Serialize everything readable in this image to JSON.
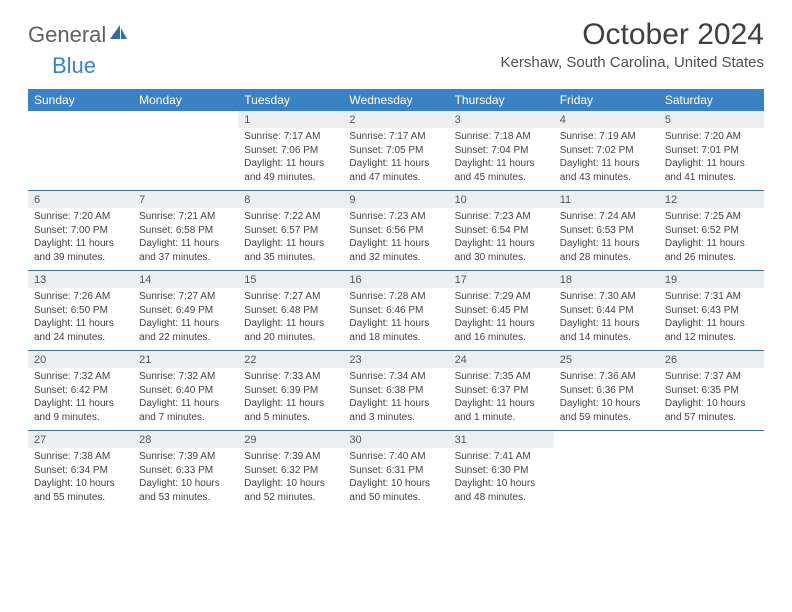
{
  "logo": {
    "part1": "General",
    "part2": "Blue"
  },
  "title": "October 2024",
  "location": "Kershaw, South Carolina, United States",
  "colors": {
    "header_bg": "#3b82c4",
    "header_text": "#ffffff",
    "daynum_bg": "#eceff1",
    "sep_color": "#3b6fa0",
    "body_text": "#444444",
    "page_bg": "#ffffff"
  },
  "day_names": [
    "Sunday",
    "Monday",
    "Tuesday",
    "Wednesday",
    "Thursday",
    "Friday",
    "Saturday"
  ],
  "weeks": [
    [
      null,
      null,
      {
        "n": "1",
        "sr": "Sunrise: 7:17 AM",
        "ss": "Sunset: 7:06 PM",
        "d1": "Daylight: 11 hours",
        "d2": "and 49 minutes."
      },
      {
        "n": "2",
        "sr": "Sunrise: 7:17 AM",
        "ss": "Sunset: 7:05 PM",
        "d1": "Daylight: 11 hours",
        "d2": "and 47 minutes."
      },
      {
        "n": "3",
        "sr": "Sunrise: 7:18 AM",
        "ss": "Sunset: 7:04 PM",
        "d1": "Daylight: 11 hours",
        "d2": "and 45 minutes."
      },
      {
        "n": "4",
        "sr": "Sunrise: 7:19 AM",
        "ss": "Sunset: 7:02 PM",
        "d1": "Daylight: 11 hours",
        "d2": "and 43 minutes."
      },
      {
        "n": "5",
        "sr": "Sunrise: 7:20 AM",
        "ss": "Sunset: 7:01 PM",
        "d1": "Daylight: 11 hours",
        "d2": "and 41 minutes."
      }
    ],
    [
      {
        "n": "6",
        "sr": "Sunrise: 7:20 AM",
        "ss": "Sunset: 7:00 PM",
        "d1": "Daylight: 11 hours",
        "d2": "and 39 minutes."
      },
      {
        "n": "7",
        "sr": "Sunrise: 7:21 AM",
        "ss": "Sunset: 6:58 PM",
        "d1": "Daylight: 11 hours",
        "d2": "and 37 minutes."
      },
      {
        "n": "8",
        "sr": "Sunrise: 7:22 AM",
        "ss": "Sunset: 6:57 PM",
        "d1": "Daylight: 11 hours",
        "d2": "and 35 minutes."
      },
      {
        "n": "9",
        "sr": "Sunrise: 7:23 AM",
        "ss": "Sunset: 6:56 PM",
        "d1": "Daylight: 11 hours",
        "d2": "and 32 minutes."
      },
      {
        "n": "10",
        "sr": "Sunrise: 7:23 AM",
        "ss": "Sunset: 6:54 PM",
        "d1": "Daylight: 11 hours",
        "d2": "and 30 minutes."
      },
      {
        "n": "11",
        "sr": "Sunrise: 7:24 AM",
        "ss": "Sunset: 6:53 PM",
        "d1": "Daylight: 11 hours",
        "d2": "and 28 minutes."
      },
      {
        "n": "12",
        "sr": "Sunrise: 7:25 AM",
        "ss": "Sunset: 6:52 PM",
        "d1": "Daylight: 11 hours",
        "d2": "and 26 minutes."
      }
    ],
    [
      {
        "n": "13",
        "sr": "Sunrise: 7:26 AM",
        "ss": "Sunset: 6:50 PM",
        "d1": "Daylight: 11 hours",
        "d2": "and 24 minutes."
      },
      {
        "n": "14",
        "sr": "Sunrise: 7:27 AM",
        "ss": "Sunset: 6:49 PM",
        "d1": "Daylight: 11 hours",
        "d2": "and 22 minutes."
      },
      {
        "n": "15",
        "sr": "Sunrise: 7:27 AM",
        "ss": "Sunset: 6:48 PM",
        "d1": "Daylight: 11 hours",
        "d2": "and 20 minutes."
      },
      {
        "n": "16",
        "sr": "Sunrise: 7:28 AM",
        "ss": "Sunset: 6:46 PM",
        "d1": "Daylight: 11 hours",
        "d2": "and 18 minutes."
      },
      {
        "n": "17",
        "sr": "Sunrise: 7:29 AM",
        "ss": "Sunset: 6:45 PM",
        "d1": "Daylight: 11 hours",
        "d2": "and 16 minutes."
      },
      {
        "n": "18",
        "sr": "Sunrise: 7:30 AM",
        "ss": "Sunset: 6:44 PM",
        "d1": "Daylight: 11 hours",
        "d2": "and 14 minutes."
      },
      {
        "n": "19",
        "sr": "Sunrise: 7:31 AM",
        "ss": "Sunset: 6:43 PM",
        "d1": "Daylight: 11 hours",
        "d2": "and 12 minutes."
      }
    ],
    [
      {
        "n": "20",
        "sr": "Sunrise: 7:32 AM",
        "ss": "Sunset: 6:42 PM",
        "d1": "Daylight: 11 hours",
        "d2": "and 9 minutes."
      },
      {
        "n": "21",
        "sr": "Sunrise: 7:32 AM",
        "ss": "Sunset: 6:40 PM",
        "d1": "Daylight: 11 hours",
        "d2": "and 7 minutes."
      },
      {
        "n": "22",
        "sr": "Sunrise: 7:33 AM",
        "ss": "Sunset: 6:39 PM",
        "d1": "Daylight: 11 hours",
        "d2": "and 5 minutes."
      },
      {
        "n": "23",
        "sr": "Sunrise: 7:34 AM",
        "ss": "Sunset: 6:38 PM",
        "d1": "Daylight: 11 hours",
        "d2": "and 3 minutes."
      },
      {
        "n": "24",
        "sr": "Sunrise: 7:35 AM",
        "ss": "Sunset: 6:37 PM",
        "d1": "Daylight: 11 hours",
        "d2": "and 1 minute."
      },
      {
        "n": "25",
        "sr": "Sunrise: 7:36 AM",
        "ss": "Sunset: 6:36 PM",
        "d1": "Daylight: 10 hours",
        "d2": "and 59 minutes."
      },
      {
        "n": "26",
        "sr": "Sunrise: 7:37 AM",
        "ss": "Sunset: 6:35 PM",
        "d1": "Daylight: 10 hours",
        "d2": "and 57 minutes."
      }
    ],
    [
      {
        "n": "27",
        "sr": "Sunrise: 7:38 AM",
        "ss": "Sunset: 6:34 PM",
        "d1": "Daylight: 10 hours",
        "d2": "and 55 minutes."
      },
      {
        "n": "28",
        "sr": "Sunrise: 7:39 AM",
        "ss": "Sunset: 6:33 PM",
        "d1": "Daylight: 10 hours",
        "d2": "and 53 minutes."
      },
      {
        "n": "29",
        "sr": "Sunrise: 7:39 AM",
        "ss": "Sunset: 6:32 PM",
        "d1": "Daylight: 10 hours",
        "d2": "and 52 minutes."
      },
      {
        "n": "30",
        "sr": "Sunrise: 7:40 AM",
        "ss": "Sunset: 6:31 PM",
        "d1": "Daylight: 10 hours",
        "d2": "and 50 minutes."
      },
      {
        "n": "31",
        "sr": "Sunrise: 7:41 AM",
        "ss": "Sunset: 6:30 PM",
        "d1": "Daylight: 10 hours",
        "d2": "and 48 minutes."
      },
      null,
      null
    ]
  ]
}
